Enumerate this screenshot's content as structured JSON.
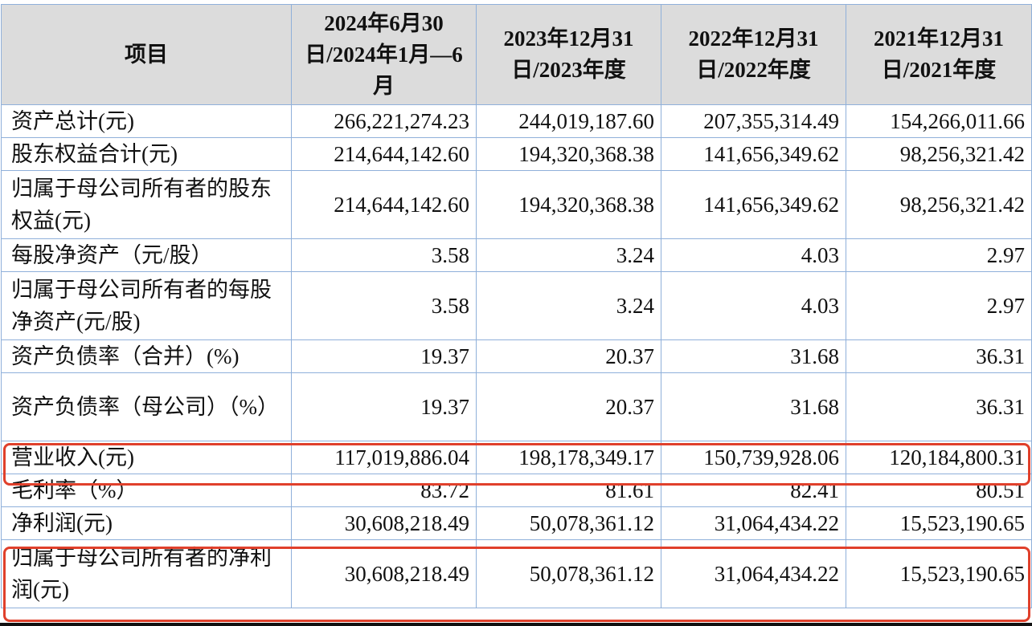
{
  "header": [
    "项目",
    "2024年6月30日/2024年1月—6月",
    "2023年12月31日/2023年度",
    "2022年12月31日/2022年度",
    "2021年12月31日/2021年度"
  ],
  "rows": [
    {
      "label": "资产总计(元)",
      "values": [
        "266,221,274.23",
        "244,019,187.60",
        "207,355,314.49",
        "154,266,011.66"
      ],
      "tall": false,
      "highlighted": false
    },
    {
      "label": "股东权益合计(元)",
      "values": [
        "214,644,142.60",
        "194,320,368.38",
        "141,656,349.62",
        "98,256,321.42"
      ],
      "tall": false,
      "highlighted": false
    },
    {
      "label": "归属于母公司所有者的股东权益(元)",
      "values": [
        "214,644,142.60",
        "194,320,368.38",
        "141,656,349.62",
        "98,256,321.42"
      ],
      "tall": true,
      "highlighted": false
    },
    {
      "label": "每股净资产（元/股）",
      "values": [
        "3.58",
        "3.24",
        "4.03",
        "2.97"
      ],
      "tall": false,
      "highlighted": false
    },
    {
      "label": "归属于母公司所有者的每股净资产(元/股)",
      "values": [
        "3.58",
        "3.24",
        "4.03",
        "2.97"
      ],
      "tall": true,
      "highlighted": false
    },
    {
      "label": "资产负债率（合并）(%)",
      "values": [
        "19.37",
        "20.37",
        "31.68",
        "36.31"
      ],
      "tall": false,
      "highlighted": false
    },
    {
      "label": "资产负债率（母公司）（%）",
      "values": [
        "19.37",
        "20.37",
        "31.68",
        "36.31"
      ],
      "tall": true,
      "highlighted": false
    },
    {
      "label": "营业收入(元)",
      "values": [
        "117,019,886.04",
        "198,178,349.17",
        "150,739,928.06",
        "120,184,800.31"
      ],
      "tall": false,
      "highlighted": true
    },
    {
      "label": "毛利率（%）",
      "values": [
        "83.72",
        "81.61",
        "82.41",
        "80.51"
      ],
      "tall": false,
      "highlighted": false
    },
    {
      "label": "净利润(元)",
      "values": [
        "30,608,218.49",
        "50,078,361.12",
        "31,064,434.22",
        "15,523,190.65"
      ],
      "tall": false,
      "highlighted": false
    },
    {
      "label": "归属于母公司所有者的净利润(元)",
      "values": [
        "30,608,218.49",
        "50,078,361.12",
        "31,064,434.22",
        "15,523,190.65"
      ],
      "tall": true,
      "highlighted": true
    }
  ],
  "colors": {
    "border": "#8fb0da",
    "header_bg": "#dcdcdc",
    "highlight": "#e0402b"
  }
}
